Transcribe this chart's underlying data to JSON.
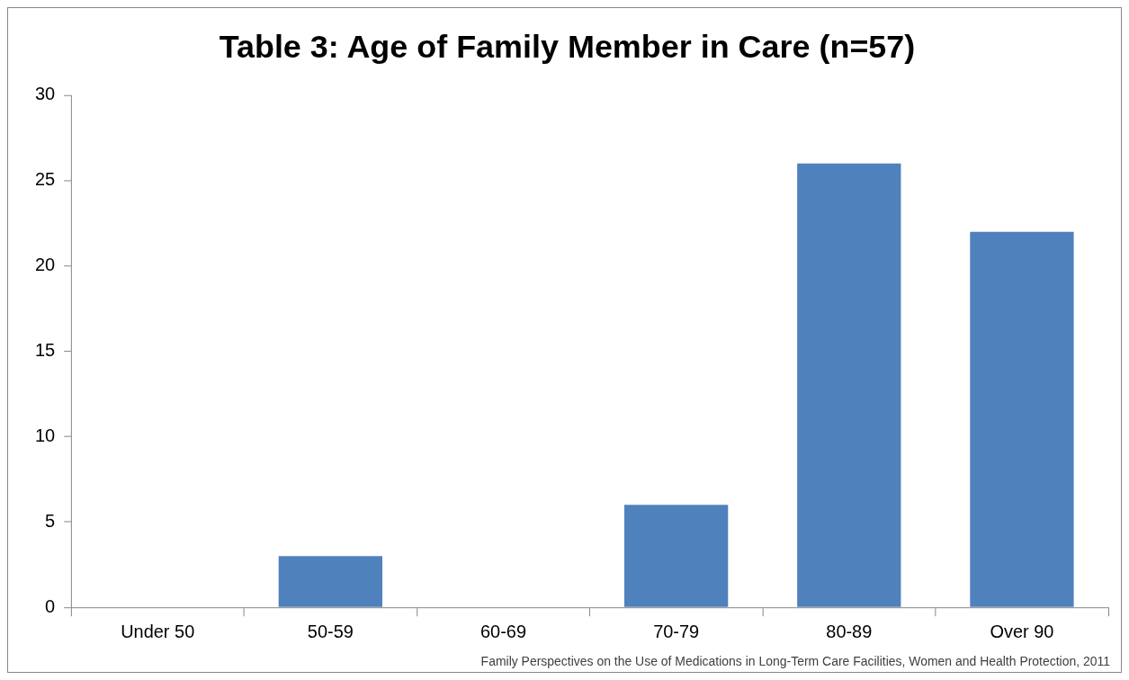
{
  "chart_data": {
    "type": "bar",
    "title": "Table 3: Age of Family Member in Care (n=57)",
    "categories": [
      "Under 50",
      "50-59",
      "60-69",
      "70-79",
      "80-89",
      "Over 90"
    ],
    "values": [
      0,
      3,
      0,
      6,
      26,
      22
    ],
    "color": "#4f81bd",
    "ylim": [
      0,
      30
    ],
    "yticks": [
      0,
      5,
      10,
      15,
      20,
      25,
      30
    ],
    "grid": false,
    "legend": false,
    "annotations": [
      "Family Perspectives on the Use of Medications in Long-Term Care Facilities, Women and Health Protection, 2011"
    ]
  }
}
